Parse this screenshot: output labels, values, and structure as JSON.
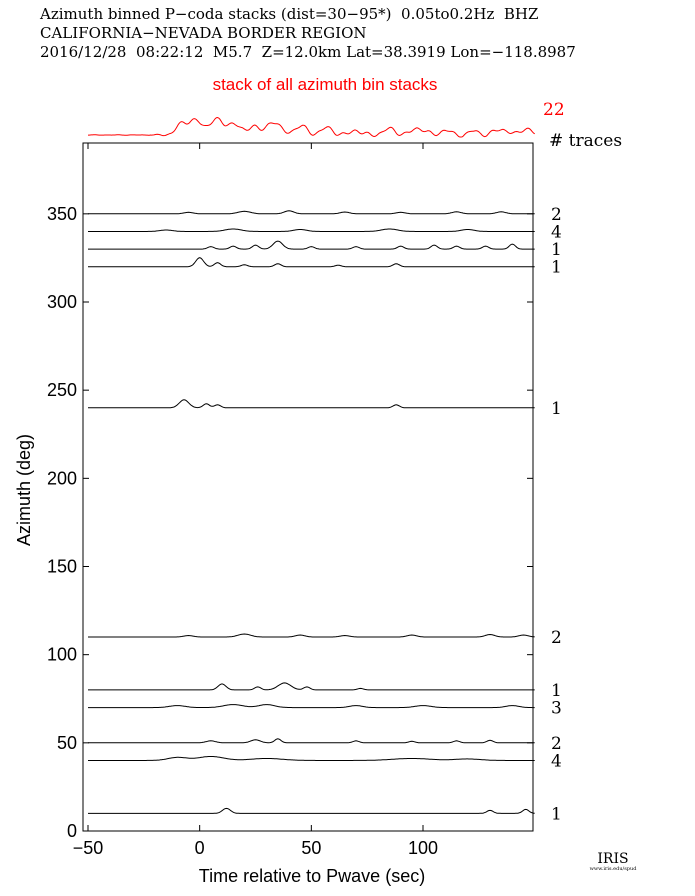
{
  "header": {
    "line1": "Azimuth binned P−coda stacks (dist=30−95*)  0.05to0.2Hz  BHZ",
    "line2": "CALIFORNIA−NEVADA BORDER REGION",
    "line3": "2016/12/28  08:22:12  M5.7  Z=12.0km Lat=38.3919 Lon=−118.8987"
  },
  "summary": {
    "label": "stack of all azimuth bin stacks",
    "count": "22",
    "color": "#ff0000"
  },
  "traces_header": "# traces",
  "logo": {
    "text": "IRIS",
    "subtext": "www.iris.edu/spud"
  },
  "chart_data": {
    "type": "line",
    "xlabel": "Time relative to Pwave (sec)",
    "ylabel": "Azimuth (deg)",
    "xlim": [
      -50,
      150
    ],
    "ylim": [
      0,
      390
    ],
    "xticks": [
      -50,
      0,
      50,
      100
    ],
    "yticks": [
      0,
      50,
      100,
      150,
      200,
      250,
      300,
      350
    ],
    "grid": false,
    "trace_color": "#000000",
    "series": [
      {
        "azimuth": 350,
        "traces": "2",
        "bumps": [
          [
            -5,
            1.5,
            3
          ],
          [
            20,
            2.5,
            4
          ],
          [
            40,
            3,
            3
          ],
          [
            65,
            1.8,
            3
          ],
          [
            90,
            1.5,
            3
          ],
          [
            115,
            2,
            3
          ],
          [
            135,
            2,
            3
          ]
        ]
      },
      {
        "azimuth": 340,
        "traces": "4",
        "bumps": [
          [
            -15,
            1.5,
            4
          ],
          [
            15,
            2.5,
            5
          ],
          [
            45,
            2,
            4
          ],
          [
            85,
            2.5,
            5
          ],
          [
            120,
            2,
            4
          ]
        ]
      },
      {
        "azimuth": 330,
        "traces": "1",
        "bumps": [
          [
            5,
            2.5,
            2
          ],
          [
            15,
            3,
            2
          ],
          [
            25,
            4,
            2
          ],
          [
            35,
            8,
            3
          ],
          [
            50,
            2.5,
            2
          ],
          [
            70,
            2.5,
            2
          ],
          [
            90,
            3,
            2
          ],
          [
            105,
            4,
            2
          ],
          [
            115,
            3,
            2
          ],
          [
            128,
            3,
            2
          ],
          [
            140,
            5,
            2
          ]
        ]
      },
      {
        "azimuth": 320,
        "traces": "1",
        "bumps": [
          [
            0,
            9,
            2.5
          ],
          [
            8,
            4,
            2
          ],
          [
            20,
            2,
            2
          ],
          [
            35,
            3,
            2
          ],
          [
            62,
            1.5,
            2
          ],
          [
            88,
            3,
            2
          ]
        ]
      },
      {
        "azimuth": 240,
        "traces": "1",
        "bumps": [
          [
            -7,
            8,
            3
          ],
          [
            3,
            4,
            2
          ],
          [
            8,
            3,
            2
          ],
          [
            88,
            3,
            2
          ]
        ]
      },
      {
        "azimuth": 110,
        "traces": "2",
        "bumps": [
          [
            -5,
            1.5,
            3
          ],
          [
            20,
            3,
            4
          ],
          [
            45,
            2,
            3
          ],
          [
            65,
            1.5,
            3
          ],
          [
            95,
            2,
            3
          ],
          [
            130,
            2.5,
            3
          ],
          [
            145,
            2,
            3
          ]
        ]
      },
      {
        "azimuth": 80,
        "traces": "1",
        "bumps": [
          [
            10,
            6,
            2.5
          ],
          [
            26,
            3,
            2
          ],
          [
            38,
            7,
            4
          ],
          [
            48,
            3,
            2
          ],
          [
            72,
            1.5,
            2
          ]
        ]
      },
      {
        "azimuth": 70,
        "traces": "3",
        "bumps": [
          [
            -10,
            2,
            5
          ],
          [
            15,
            3,
            6
          ],
          [
            30,
            3,
            5
          ],
          [
            70,
            2,
            4
          ],
          [
            100,
            2,
            5
          ],
          [
            140,
            2,
            4
          ]
        ]
      },
      {
        "azimuth": 50,
        "traces": "2",
        "bumps": [
          [
            5,
            2,
            3
          ],
          [
            25,
            3,
            3
          ],
          [
            35,
            4,
            2
          ],
          [
            70,
            2,
            2
          ],
          [
            95,
            1.5,
            2
          ],
          [
            115,
            2,
            2
          ],
          [
            130,
            2.5,
            2
          ]
        ]
      },
      {
        "azimuth": 40,
        "traces": "4",
        "bumps": [
          [
            -10,
            3,
            6
          ],
          [
            5,
            4,
            8
          ],
          [
            30,
            2,
            10
          ],
          [
            95,
            2,
            12
          ],
          [
            120,
            1.5,
            8
          ]
        ]
      },
      {
        "azimuth": 10,
        "traces": "1",
        "bumps": [
          [
            12,
            5,
            2.5
          ],
          [
            130,
            3,
            2
          ],
          [
            146,
            4,
            2
          ]
        ]
      }
    ],
    "summary_bumps": [
      [
        -8,
        10,
        4
      ],
      [
        -2,
        14,
        4
      ],
      [
        7,
        16,
        4
      ],
      [
        15,
        12,
        4
      ],
      [
        24,
        10,
        3
      ],
      [
        33,
        14,
        4
      ],
      [
        45,
        9,
        4
      ],
      [
        57,
        7,
        4
      ],
      [
        70,
        5,
        3
      ],
      [
        85,
        6,
        4
      ],
      [
        98,
        7,
        4
      ],
      [
        110,
        5,
        3
      ],
      [
        123,
        4,
        3
      ],
      [
        135,
        6,
        4
      ],
      [
        146,
        7,
        3
      ]
    ]
  }
}
